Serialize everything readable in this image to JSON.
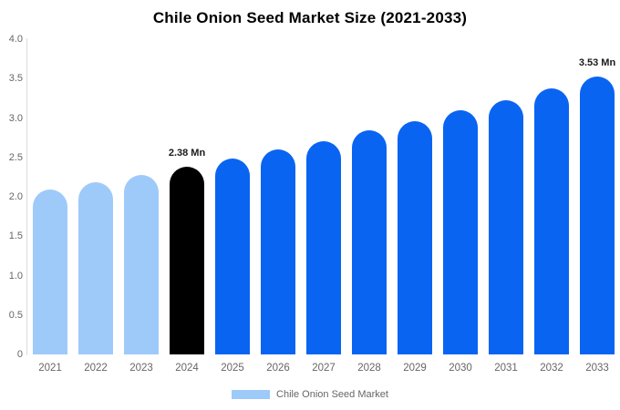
{
  "page": {
    "background": "#ffffff"
  },
  "chart_data": {
    "type": "bar",
    "title": "Chile Onion Seed Market Size (2021-2033)",
    "categories": [
      "2021",
      "2022",
      "2023",
      "2024",
      "2025",
      "2026",
      "2027",
      "2028",
      "2029",
      "2030",
      "2031",
      "2032",
      "2033"
    ],
    "values": [
      2.09,
      2.18,
      2.28,
      2.38,
      2.49,
      2.6,
      2.71,
      2.84,
      2.96,
      3.1,
      3.23,
      3.38,
      3.53
    ],
    "unit": "Mn",
    "xlabel": "",
    "ylabel": "",
    "ylim": [
      0,
      4.0
    ],
    "yticks": [
      "4.0",
      "3.5",
      "3.0",
      "2.5",
      "2.0",
      "1.5",
      "1.0",
      "0.5",
      "0"
    ],
    "grid": "none",
    "bar_colors": [
      "#9ECAFA",
      "#9ECAFA",
      "#9ECAFA",
      "#000000",
      "#0A64F2",
      "#0A64F2",
      "#0A64F2",
      "#0A64F2",
      "#0A64F2",
      "#0A64F2",
      "#0A64F2",
      "#0A64F2",
      "#0A64F2"
    ],
    "colors": {
      "historical": "#9ECAFA",
      "base_year": "#000000",
      "forecast": "#0A64F2",
      "axis_line": "#dddddd",
      "tick_text": "#666666",
      "annotation_text": "#1a1a1a",
      "title_text": "#000000"
    },
    "annotations": [
      {
        "category": "2024",
        "text": "2.38 Mn"
      },
      {
        "category": "2033",
        "text": "3.53 Mn"
      }
    ],
    "legend": {
      "label": "Chile Onion Seed Market",
      "position": "bottom",
      "swatch_color": "#9ECAFA"
    }
  }
}
